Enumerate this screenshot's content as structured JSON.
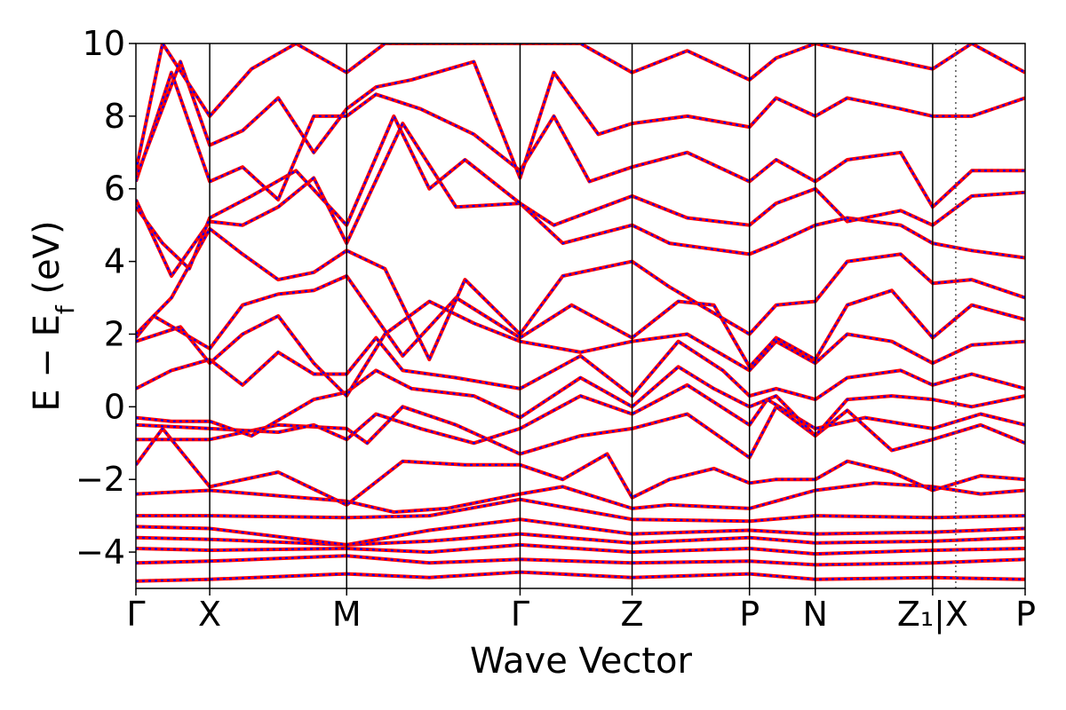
{
  "chart_data": {
    "type": "line",
    "title": "",
    "xlabel": "Wave Vector",
    "ylabel_parts": {
      "main": "E − E",
      "sub": "f",
      "unit": " (eV)"
    },
    "ylim": [
      -5,
      10
    ],
    "yticks": [
      -4,
      -2,
      0,
      2,
      4,
      6,
      8,
      10
    ],
    "ytick_labels": [
      "−4",
      "−2",
      "0",
      "2",
      "4",
      "6",
      "8",
      "10"
    ],
    "xlim": [
      0,
      1
    ],
    "kpoints": [
      {
        "label": "Γ",
        "x": 0.0
      },
      {
        "label": "X",
        "x": 0.083
      },
      {
        "label": "M",
        "x": 0.237
      },
      {
        "label": "Γ",
        "x": 0.432
      },
      {
        "label": "Z",
        "x": 0.558
      },
      {
        "label": "P",
        "x": 0.69
      },
      {
        "label": "N",
        "x": 0.764
      },
      {
        "label": "Z₁|X",
        "x": 0.896
      },
      {
        "label": "P",
        "x": 1.0
      }
    ],
    "extra_divider_x": 0.922,
    "grid": false,
    "series_styles": [
      {
        "color": "#ff0000",
        "style": "solid"
      },
      {
        "color": "#0000ff",
        "style": "dashed"
      }
    ],
    "bands": [
      [
        [
          0.0,
          -4.8
        ],
        [
          0.083,
          -4.75
        ],
        [
          0.237,
          -4.6
        ],
        [
          0.33,
          -4.7
        ],
        [
          0.432,
          -4.55
        ],
        [
          0.558,
          -4.7
        ],
        [
          0.69,
          -4.6
        ],
        [
          0.764,
          -4.75
        ],
        [
          0.896,
          -4.7
        ],
        [
          1.0,
          -4.75
        ]
      ],
      [
        [
          0.0,
          -4.3
        ],
        [
          0.083,
          -4.25
        ],
        [
          0.237,
          -4.1
        ],
        [
          0.33,
          -4.3
        ],
        [
          0.432,
          -4.2
        ],
        [
          0.558,
          -4.3
        ],
        [
          0.69,
          -4.25
        ],
        [
          0.764,
          -4.35
        ],
        [
          0.896,
          -4.3
        ],
        [
          1.0,
          -4.2
        ]
      ],
      [
        [
          0.0,
          -3.9
        ],
        [
          0.083,
          -3.95
        ],
        [
          0.237,
          -3.9
        ],
        [
          0.33,
          -4.0
        ],
        [
          0.432,
          -3.8
        ],
        [
          0.558,
          -4.0
        ],
        [
          0.69,
          -3.9
        ],
        [
          0.764,
          -4.05
        ],
        [
          0.896,
          -3.95
        ],
        [
          1.0,
          -3.9
        ]
      ],
      [
        [
          0.0,
          -3.6
        ],
        [
          0.083,
          -3.65
        ],
        [
          0.237,
          -3.8
        ],
        [
          0.33,
          -3.7
        ],
        [
          0.432,
          -3.5
        ],
        [
          0.558,
          -3.75
        ],
        [
          0.69,
          -3.6
        ],
        [
          0.764,
          -3.75
        ],
        [
          0.896,
          -3.7
        ],
        [
          1.0,
          -3.6
        ]
      ],
      [
        [
          0.0,
          -3.3
        ],
        [
          0.083,
          -3.35
        ],
        [
          0.237,
          -3.8
        ],
        [
          0.33,
          -3.4
        ],
        [
          0.432,
          -3.1
        ],
        [
          0.558,
          -3.5
        ],
        [
          0.69,
          -3.4
        ],
        [
          0.764,
          -3.5
        ],
        [
          0.896,
          -3.45
        ],
        [
          1.0,
          -3.35
        ]
      ],
      [
        [
          0.0,
          -3.0
        ],
        [
          0.083,
          -3.0
        ],
        [
          0.237,
          -3.05
        ],
        [
          0.33,
          -3.0
        ],
        [
          0.432,
          -2.55
        ],
        [
          0.558,
          -3.1
        ],
        [
          0.69,
          -3.15
        ],
        [
          0.764,
          -3.0
        ],
        [
          0.896,
          -3.05
        ],
        [
          1.0,
          -3.0
        ]
      ],
      [
        [
          0.0,
          -2.4
        ],
        [
          0.083,
          -2.3
        ],
        [
          0.237,
          -2.6
        ],
        [
          0.29,
          -2.9
        ],
        [
          0.35,
          -2.8
        ],
        [
          0.432,
          -2.4
        ],
        [
          0.48,
          -2.2
        ],
        [
          0.558,
          -2.8
        ],
        [
          0.6,
          -2.7
        ],
        [
          0.69,
          -2.8
        ],
        [
          0.764,
          -2.3
        ],
        [
          0.83,
          -2.1
        ],
        [
          0.896,
          -2.2
        ],
        [
          0.95,
          -2.4
        ],
        [
          1.0,
          -2.3
        ]
      ],
      [
        [
          0.0,
          -1.6
        ],
        [
          0.03,
          -0.6
        ],
        [
          0.083,
          -2.2
        ],
        [
          0.16,
          -1.8
        ],
        [
          0.237,
          -2.7
        ],
        [
          0.3,
          -1.5
        ],
        [
          0.37,
          -1.6
        ],
        [
          0.432,
          -1.6
        ],
        [
          0.48,
          -2.0
        ],
        [
          0.53,
          -1.3
        ],
        [
          0.558,
          -2.5
        ],
        [
          0.6,
          -2.0
        ],
        [
          0.65,
          -1.7
        ],
        [
          0.69,
          -2.1
        ],
        [
          0.72,
          -2.0
        ],
        [
          0.764,
          -2.0
        ],
        [
          0.8,
          -1.5
        ],
        [
          0.85,
          -1.8
        ],
        [
          0.896,
          -2.3
        ],
        [
          0.95,
          -1.9
        ],
        [
          1.0,
          -2.0
        ]
      ],
      [
        [
          0.0,
          -0.9
        ],
        [
          0.083,
          -0.9
        ],
        [
          0.16,
          -0.5
        ],
        [
          0.237,
          -0.6
        ],
        [
          0.26,
          -1.0
        ],
        [
          0.3,
          0.0
        ],
        [
          0.36,
          -0.5
        ],
        [
          0.432,
          -1.3
        ],
        [
          0.5,
          -0.8
        ],
        [
          0.558,
          -0.6
        ],
        [
          0.62,
          -0.2
        ],
        [
          0.69,
          -1.4
        ],
        [
          0.72,
          0.0
        ],
        [
          0.764,
          -0.8
        ],
        [
          0.8,
          -0.1
        ],
        [
          0.85,
          -1.2
        ],
        [
          0.896,
          -0.9
        ],
        [
          0.95,
          -0.5
        ],
        [
          1.0,
          -1.0
        ]
      ],
      [
        [
          0.0,
          -0.5
        ],
        [
          0.083,
          -0.6
        ],
        [
          0.16,
          -0.7
        ],
        [
          0.2,
          -0.5
        ],
        [
          0.237,
          -0.9
        ],
        [
          0.27,
          -0.2
        ],
        [
          0.32,
          -0.6
        ],
        [
          0.38,
          -1.0
        ],
        [
          0.432,
          -0.6
        ],
        [
          0.5,
          0.3
        ],
        [
          0.558,
          -0.2
        ],
        [
          0.62,
          0.6
        ],
        [
          0.69,
          -0.5
        ],
        [
          0.71,
          0.2
        ],
        [
          0.764,
          -0.6
        ],
        [
          0.82,
          -0.3
        ],
        [
          0.87,
          -0.5
        ],
        [
          0.896,
          -0.6
        ],
        [
          0.95,
          -0.2
        ],
        [
          1.0,
          -0.5
        ]
      ],
      [
        [
          0.0,
          -0.3
        ],
        [
          0.04,
          -0.4
        ],
        [
          0.083,
          -0.4
        ],
        [
          0.13,
          -0.8
        ],
        [
          0.2,
          0.2
        ],
        [
          0.237,
          0.4
        ],
        [
          0.27,
          1.0
        ],
        [
          0.31,
          0.5
        ],
        [
          0.38,
          0.3
        ],
        [
          0.432,
          -0.3
        ],
        [
          0.5,
          0.8
        ],
        [
          0.558,
          0.0
        ],
        [
          0.61,
          1.1
        ],
        [
          0.65,
          0.5
        ],
        [
          0.69,
          0.0
        ],
        [
          0.72,
          0.3
        ],
        [
          0.764,
          -0.8
        ],
        [
          0.8,
          0.2
        ],
        [
          0.85,
          0.3
        ],
        [
          0.896,
          0.2
        ],
        [
          0.94,
          0.0
        ],
        [
          1.0,
          0.3
        ]
      ],
      [
        [
          0.0,
          0.5
        ],
        [
          0.04,
          1.0
        ],
        [
          0.083,
          1.3
        ],
        [
          0.12,
          0.6
        ],
        [
          0.16,
          1.5
        ],
        [
          0.2,
          0.9
        ],
        [
          0.237,
          0.9
        ],
        [
          0.27,
          1.9
        ],
        [
          0.3,
          1.0
        ],
        [
          0.36,
          0.8
        ],
        [
          0.432,
          0.5
        ],
        [
          0.5,
          1.4
        ],
        [
          0.558,
          0.3
        ],
        [
          0.61,
          1.8
        ],
        [
          0.66,
          1.0
        ],
        [
          0.69,
          0.3
        ],
        [
          0.72,
          0.5
        ],
        [
          0.764,
          0.2
        ],
        [
          0.8,
          0.8
        ],
        [
          0.86,
          1.0
        ],
        [
          0.896,
          0.6
        ],
        [
          0.94,
          0.9
        ],
        [
          1.0,
          0.5
        ]
      ],
      [
        [
          0.0,
          1.8
        ],
        [
          0.05,
          2.2
        ],
        [
          0.083,
          1.2
        ],
        [
          0.12,
          2.0
        ],
        [
          0.16,
          2.5
        ],
        [
          0.2,
          1.2
        ],
        [
          0.237,
          0.3
        ],
        [
          0.28,
          2.0
        ],
        [
          0.33,
          2.9
        ],
        [
          0.38,
          2.3
        ],
        [
          0.432,
          1.8
        ],
        [
          0.5,
          1.5
        ],
        [
          0.558,
          1.8
        ],
        [
          0.62,
          2.0
        ],
        [
          0.69,
          1.0
        ],
        [
          0.72,
          1.8
        ],
        [
          0.764,
          1.2
        ],
        [
          0.8,
          2.0
        ],
        [
          0.85,
          1.8
        ],
        [
          0.896,
          1.2
        ],
        [
          0.94,
          1.7
        ],
        [
          1.0,
          1.8
        ]
      ],
      [
        [
          0.0,
          1.9
        ],
        [
          0.02,
          2.5
        ],
        [
          0.083,
          1.6
        ],
        [
          0.12,
          2.8
        ],
        [
          0.16,
          3.1
        ],
        [
          0.2,
          3.2
        ],
        [
          0.237,
          3.6
        ],
        [
          0.3,
          1.4
        ],
        [
          0.36,
          3.0
        ],
        [
          0.432,
          1.9
        ],
        [
          0.49,
          2.8
        ],
        [
          0.558,
          1.9
        ],
        [
          0.61,
          2.9
        ],
        [
          0.65,
          2.8
        ],
        [
          0.69,
          1.1
        ],
        [
          0.72,
          1.9
        ],
        [
          0.764,
          1.3
        ],
        [
          0.8,
          2.8
        ],
        [
          0.85,
          3.2
        ],
        [
          0.896,
          1.9
        ],
        [
          0.94,
          2.8
        ],
        [
          1.0,
          2.4
        ]
      ],
      [
        [
          0.0,
          2.0
        ],
        [
          0.04,
          3.0
        ],
        [
          0.083,
          4.9
        ],
        [
          0.12,
          4.2
        ],
        [
          0.16,
          3.5
        ],
        [
          0.2,
          3.7
        ],
        [
          0.237,
          4.3
        ],
        [
          0.28,
          3.8
        ],
        [
          0.33,
          1.3
        ],
        [
          0.37,
          3.5
        ],
        [
          0.432,
          2.0
        ],
        [
          0.48,
          3.6
        ],
        [
          0.558,
          4.0
        ],
        [
          0.6,
          3.3
        ],
        [
          0.69,
          2.0
        ],
        [
          0.72,
          2.8
        ],
        [
          0.764,
          2.9
        ],
        [
          0.8,
          4.0
        ],
        [
          0.86,
          4.2
        ],
        [
          0.896,
          3.4
        ],
        [
          0.94,
          3.5
        ],
        [
          1.0,
          3.0
        ]
      ],
      [
        [
          0.0,
          5.7
        ],
        [
          0.04,
          3.6
        ],
        [
          0.083,
          5.1
        ],
        [
          0.12,
          5.0
        ],
        [
          0.16,
          5.5
        ],
        [
          0.2,
          6.3
        ],
        [
          0.237,
          4.5
        ],
        [
          0.3,
          7.8
        ],
        [
          0.36,
          5.5
        ],
        [
          0.432,
          5.6
        ],
        [
          0.48,
          4.5
        ],
        [
          0.558,
          5.0
        ],
        [
          0.6,
          4.5
        ],
        [
          0.69,
          4.2
        ],
        [
          0.72,
          4.5
        ],
        [
          0.764,
          5.0
        ],
        [
          0.8,
          5.2
        ],
        [
          0.86,
          5.0
        ],
        [
          0.896,
          4.5
        ],
        [
          0.94,
          4.3
        ],
        [
          1.0,
          4.1
        ]
      ],
      [
        [
          0.0,
          5.5
        ],
        [
          0.03,
          4.5
        ],
        [
          0.06,
          3.8
        ],
        [
          0.083,
          5.2
        ],
        [
          0.13,
          5.8
        ],
        [
          0.18,
          6.5
        ],
        [
          0.237,
          5.0
        ],
        [
          0.29,
          8.0
        ],
        [
          0.33,
          6.0
        ],
        [
          0.37,
          6.8
        ],
        [
          0.432,
          5.6
        ],
        [
          0.47,
          5.0
        ],
        [
          0.558,
          5.8
        ],
        [
          0.62,
          5.2
        ],
        [
          0.69,
          5.0
        ],
        [
          0.72,
          5.6
        ],
        [
          0.764,
          6.0
        ],
        [
          0.8,
          5.1
        ],
        [
          0.86,
          5.4
        ],
        [
          0.896,
          5.0
        ],
        [
          0.94,
          5.8
        ],
        [
          1.0,
          5.9
        ]
      ],
      [
        [
          0.0,
          6.2
        ],
        [
          0.04,
          9.2
        ],
        [
          0.083,
          6.2
        ],
        [
          0.12,
          6.6
        ],
        [
          0.16,
          5.7
        ],
        [
          0.2,
          8.0
        ],
        [
          0.237,
          8.0
        ],
        [
          0.27,
          8.6
        ],
        [
          0.32,
          8.2
        ],
        [
          0.38,
          7.5
        ],
        [
          0.432,
          6.5
        ],
        [
          0.47,
          8.0
        ],
        [
          0.51,
          6.2
        ],
        [
          0.558,
          6.6
        ],
        [
          0.62,
          7.0
        ],
        [
          0.69,
          6.2
        ],
        [
          0.72,
          6.8
        ],
        [
          0.764,
          6.2
        ],
        [
          0.8,
          6.8
        ],
        [
          0.86,
          7.0
        ],
        [
          0.896,
          5.5
        ],
        [
          0.94,
          6.5
        ],
        [
          1.0,
          6.5
        ]
      ],
      [
        [
          0.0,
          6.3
        ],
        [
          0.05,
          9.5
        ],
        [
          0.083,
          7.2
        ],
        [
          0.12,
          7.6
        ],
        [
          0.16,
          8.5
        ],
        [
          0.2,
          7.0
        ],
        [
          0.237,
          8.2
        ],
        [
          0.27,
          8.8
        ],
        [
          0.31,
          9.0
        ],
        [
          0.38,
          9.5
        ],
        [
          0.432,
          6.3
        ],
        [
          0.47,
          9.2
        ],
        [
          0.52,
          7.5
        ],
        [
          0.558,
          7.8
        ],
        [
          0.62,
          8.0
        ],
        [
          0.69,
          7.7
        ],
        [
          0.72,
          8.5
        ],
        [
          0.764,
          8.0
        ],
        [
          0.8,
          8.5
        ],
        [
          0.86,
          8.2
        ],
        [
          0.896,
          8.0
        ],
        [
          0.94,
          8.0
        ],
        [
          1.0,
          8.5
        ]
      ],
      [
        [
          0.0,
          6.5
        ],
        [
          0.03,
          10.0
        ],
        [
          0.083,
          8.0
        ],
        [
          0.13,
          9.3
        ],
        [
          0.18,
          10.0
        ],
        [
          0.237,
          9.2
        ],
        [
          0.28,
          10.0
        ],
        [
          0.35,
          10.0
        ],
        [
          0.432,
          10.0
        ],
        [
          0.5,
          10.0
        ],
        [
          0.558,
          9.2
        ],
        [
          0.62,
          9.8
        ],
        [
          0.69,
          9.0
        ],
        [
          0.72,
          9.6
        ],
        [
          0.764,
          10.0
        ],
        [
          0.82,
          9.7
        ],
        [
          0.896,
          9.3
        ],
        [
          0.94,
          10.0
        ],
        [
          1.0,
          9.2
        ]
      ]
    ]
  }
}
